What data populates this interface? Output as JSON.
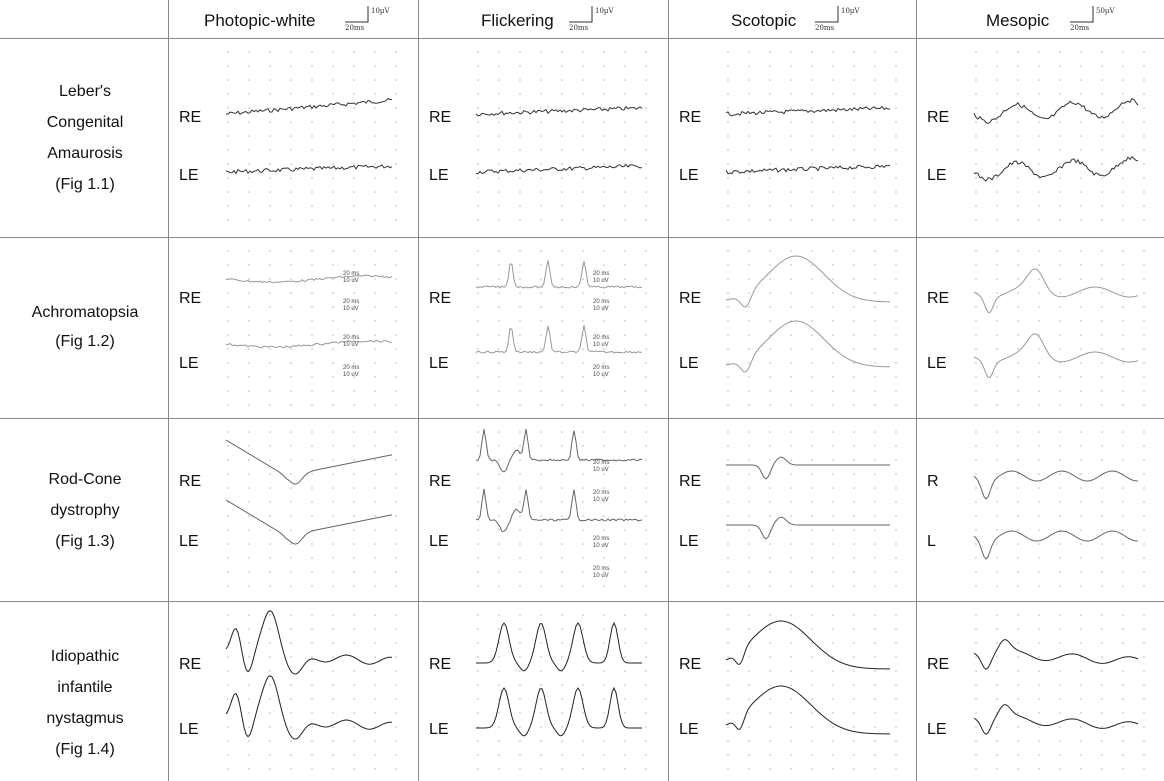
{
  "header": {
    "columns": [
      {
        "label": "Photopic-white",
        "scale_amp": "10µV",
        "scale_time": "20ms"
      },
      {
        "label": "Flickering",
        "scale_amp": "10µV",
        "scale_time": "20ms"
      },
      {
        "label": "Scotopic",
        "scale_amp": "10µV",
        "scale_time": "20ms"
      },
      {
        "label": "Mesopic",
        "scale_amp": "50µV",
        "scale_time": "20ms"
      }
    ]
  },
  "rows": [
    {
      "lines": [
        "Leber's",
        "Congenital",
        "Amaurosis",
        "(Fig 1.1)"
      ],
      "eyes": [
        [
          "RE",
          "LE"
        ],
        [
          "RE",
          "LE"
        ],
        [
          "RE",
          "LE"
        ],
        [
          "RE",
          "LE"
        ]
      ]
    },
    {
      "lines": [
        "Achromatopsia",
        "(Fig 1.2)"
      ],
      "eyes": [
        [
          "RE",
          "LE"
        ],
        [
          "RE",
          "LE"
        ],
        [
          "RE",
          "LE"
        ],
        [
          "RE",
          "LE"
        ]
      ]
    },
    {
      "lines": [
        "Rod-Cone",
        "dystrophy",
        "(Fig 1.3)"
      ],
      "eyes": [
        [
          "RE",
          "LE"
        ],
        [
          "RE",
          "LE"
        ],
        [
          "RE",
          "LE"
        ],
        [
          "R",
          "L"
        ]
      ]
    },
    {
      "lines": [
        "Idiopathic",
        "infantile",
        "nystagmus",
        "(Fig 1.4)"
      ],
      "eyes": [
        [
          "RE",
          "LE"
        ],
        [
          "RE",
          "LE"
        ],
        [
          "RE",
          "LE"
        ],
        [
          "RE",
          "LE"
        ]
      ]
    }
  ],
  "scale_labels": {
    "time": "20 ms",
    "amp": "10 uV"
  }
}
